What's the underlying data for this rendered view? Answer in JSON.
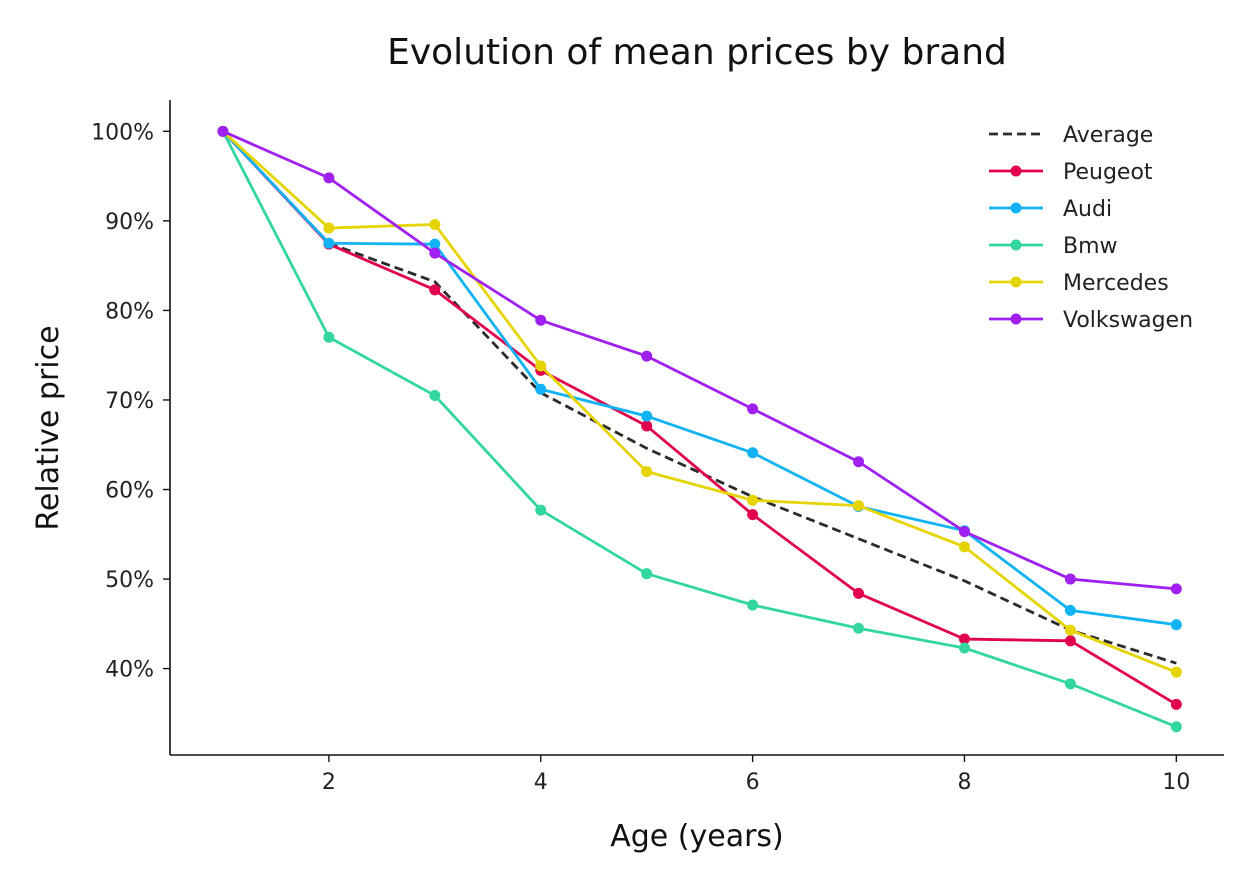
{
  "chart_data": {
    "type": "line",
    "title": "Evolution of mean prices by brand",
    "xlabel": "Age (years)",
    "ylabel": "Relative price",
    "x": [
      1,
      2,
      3,
      4,
      5,
      6,
      7,
      8,
      9,
      10
    ],
    "xlim": [
      0.5,
      10.45
    ],
    "ylim": [
      0.3035,
      1.035
    ],
    "x_ticks": [
      2,
      4,
      6,
      8,
      10
    ],
    "y_ticks": [
      0.4,
      0.5,
      0.6,
      0.7,
      0.8,
      0.9,
      1.0
    ],
    "y_tick_labels": [
      "40%",
      "50%",
      "60%",
      "70%",
      "80%",
      "90%",
      "100%"
    ],
    "grid": false,
    "legend_position": "top-right",
    "series": [
      {
        "name": "Average",
        "color": "#2b2b2b",
        "dashed": true,
        "markers": false,
        "values": [
          1.0,
          0.875,
          0.832,
          0.708,
          0.646,
          0.592,
          0.545,
          0.498,
          0.443,
          0.406
        ]
      },
      {
        "name": "Peugeot",
        "color": "#e0004d",
        "dashed": false,
        "markers": true,
        "values": [
          1.0,
          0.874,
          0.823,
          0.733,
          0.671,
          0.572,
          0.484,
          0.433,
          0.431,
          0.36
        ]
      },
      {
        "name": "Audi",
        "color": "#12b3f5",
        "dashed": false,
        "markers": true,
        "values": [
          1.0,
          0.875,
          0.874,
          0.712,
          0.682,
          0.641,
          0.581,
          0.554,
          0.465,
          0.449
        ]
      },
      {
        "name": "Bmw",
        "color": "#33d69f",
        "dashed": false,
        "markers": true,
        "values": [
          1.0,
          0.77,
          0.705,
          0.577,
          0.506,
          0.471,
          0.445,
          0.423,
          0.383,
          0.335
        ]
      },
      {
        "name": "Mercedes",
        "color": "#e5d400",
        "dashed": false,
        "markers": true,
        "values": [
          1.0,
          0.892,
          0.896,
          0.738,
          0.62,
          0.588,
          0.582,
          0.536,
          0.443,
          0.396
        ]
      },
      {
        "name": "Volkswagen",
        "color": "#a020f0",
        "dashed": false,
        "markers": true,
        "values": [
          1.0,
          0.948,
          0.864,
          0.789,
          0.749,
          0.69,
          0.631,
          0.553,
          0.5,
          0.489
        ]
      }
    ]
  }
}
